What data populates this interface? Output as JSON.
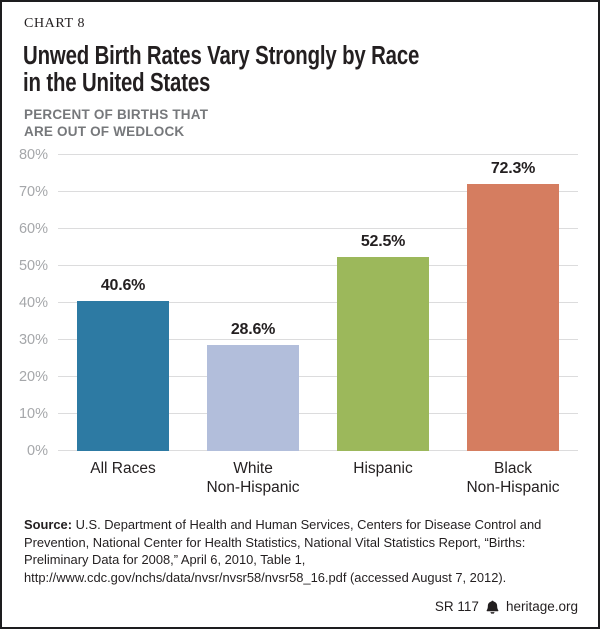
{
  "header": {
    "kicker": "CHART 8",
    "title_line1": "Unwed Birth Rates Vary Strongly by Race",
    "title_line2": "in the United States",
    "subtitle_line1": "PERCENT OF BIRTHS THAT",
    "subtitle_line2": "ARE OUT OF WEDLOCK"
  },
  "chart_data": {
    "type": "bar",
    "title": "Unwed Birth Rates Vary Strongly by Race in the United States",
    "subtitle": "PERCENT OF BIRTHS THAT ARE OUT OF WEDLOCK",
    "categories": [
      "All Races",
      "White\nNon-Hispanic",
      "Hispanic",
      "Black\nNon-Hispanic"
    ],
    "values": [
      40.6,
      28.6,
      52.5,
      72.3
    ],
    "value_labels": [
      "40.6%",
      "28.6%",
      "52.5%",
      "72.3%"
    ],
    "bar_colors": [
      "#2d7aa3",
      "#b2bedb",
      "#9cb85b",
      "#d57d60"
    ],
    "xlabel": "",
    "ylabel": "",
    "ylim": [
      0,
      80
    ],
    "ytick_step": 10,
    "ytick_labels": [
      "0%",
      "10%",
      "20%",
      "30%",
      "40%",
      "50%",
      "60%",
      "70%",
      "80%"
    ],
    "grid": true,
    "gridline_color": "#dcdcdd",
    "tick_label_color": "#a5a7aa",
    "legend": "none"
  },
  "footer": {
    "source_label": "Source:",
    "source_text": " U.S. Department of Health and Human Services, Centers for Disease Control and Prevention, National Center for Health Statistics, National Vital Statistics Report, “Births: Preliminary Data for 2008,” April 6, 2010, Table 1, http://www.cdc.gov/nchs/data/nvsr/nvsr58/nvsr58_16.pdf (accessed August 7, 2012).",
    "report_id": "SR 117",
    "site": "heritage.org"
  },
  "colors": {
    "text": "#231f20",
    "subtitle_gray": "#76787b",
    "border": "#1d1d1f"
  }
}
